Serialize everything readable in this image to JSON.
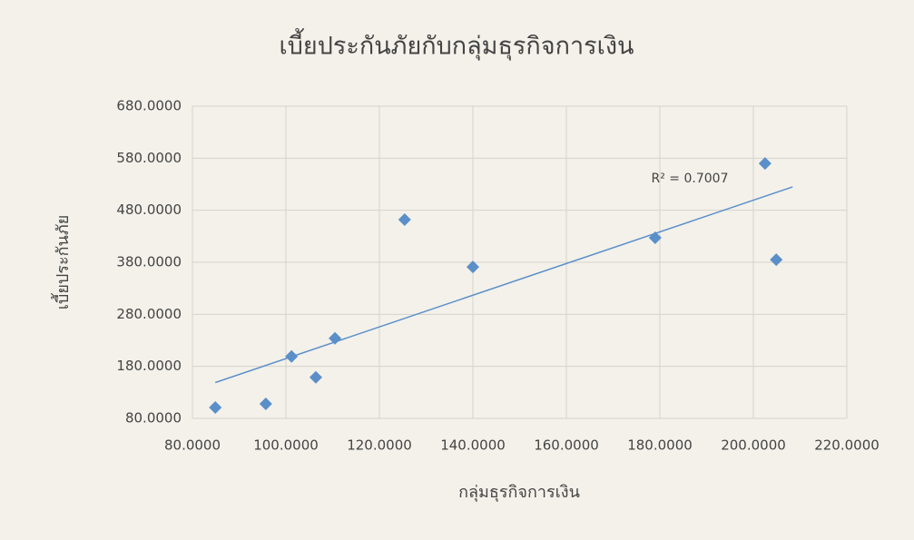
{
  "chart_data": {
    "type": "scatter",
    "title": "เบี้ยประกันภัยกับกลุ่มธุรกิจการเงิน",
    "x_label": "กลุ่มธุรกิจการเงิน",
    "y_label": "เบี้ยประกันภัย",
    "annotation": "R² = 0.7007",
    "trendline": "linear",
    "series": [
      {
        "name": "เบี้ยประกันภัย",
        "color": "#5b8fc9",
        "x": [
          84.9,
          95.7,
          101.2,
          106.4,
          110.5,
          125.4,
          140.0,
          179.0,
          202.5,
          204.9
        ],
        "values": [
          101,
          108,
          199,
          159,
          234,
          462,
          371,
          427,
          570,
          385
        ]
      }
    ],
    "xlim": [
      80,
      220
    ],
    "xticks": [
      {
        "value": 80,
        "label": "80.0000"
      },
      {
        "value": 100,
        "label": "100.0000"
      },
      {
        "value": 120,
        "label": "120.0000"
      },
      {
        "value": 140,
        "label": "140.0000"
      },
      {
        "value": 160,
        "label": "160.0000"
      },
      {
        "value": 180,
        "label": "180.0000"
      },
      {
        "value": 200,
        "label": "200.0000"
      },
      {
        "value": 220,
        "label": "220.0000"
      }
    ],
    "ylim": [
      80,
      680
    ],
    "yticks": [
      {
        "value": 80,
        "label": "80.0000"
      },
      {
        "value": 180,
        "label": "180.0000"
      },
      {
        "value": 280,
        "label": "280.0000"
      },
      {
        "value": 380,
        "label": "380.0000"
      },
      {
        "value": 480,
        "label": "480.0000"
      },
      {
        "value": 580,
        "label": "580.0000"
      },
      {
        "value": 680,
        "label": "680.0000"
      }
    ],
    "grid": true
  }
}
